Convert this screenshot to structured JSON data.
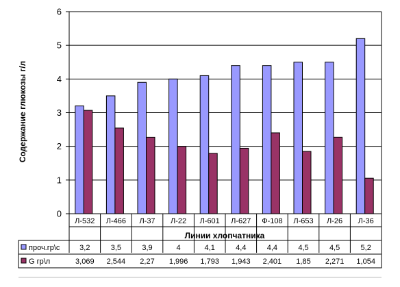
{
  "chart_data": {
    "type": "bar",
    "ylabel": "Содержание глюкозы г/л",
    "xlabel": "Линии хлопчатника",
    "ylim": [
      0,
      6
    ],
    "yticks": [
      0,
      1,
      2,
      3,
      4,
      5,
      6
    ],
    "grid": true,
    "categories": [
      "Л-532",
      "Л-466",
      "Л-37",
      "Л-22",
      "Л-601",
      "Л-627",
      "Ф-108",
      "Л-653",
      "Л-26",
      "Л-36"
    ],
    "series": [
      {
        "name": "проч.гр\\с",
        "color": "#9999FF",
        "values": [
          3.2,
          3.5,
          3.9,
          4,
          4.1,
          4.4,
          4.4,
          4.5,
          4.5,
          5.2
        ],
        "labels": [
          "3,2",
          "3,5",
          "3,9",
          "4",
          "4,1",
          "4,4",
          "4,4",
          "4,5",
          "4,5",
          "5,2"
        ]
      },
      {
        "name": "G гр\\л",
        "color": "#993366",
        "values": [
          3.069,
          2.544,
          2.27,
          1.996,
          1.793,
          1.943,
          2.401,
          1.85,
          2.271,
          1.054
        ],
        "labels": [
          "3,069",
          "2,544",
          "2,27",
          "1,996",
          "1,793",
          "1,943",
          "2,401",
          "1,85",
          "2,271",
          "1,054"
        ]
      }
    ],
    "legend": "data-table"
  }
}
